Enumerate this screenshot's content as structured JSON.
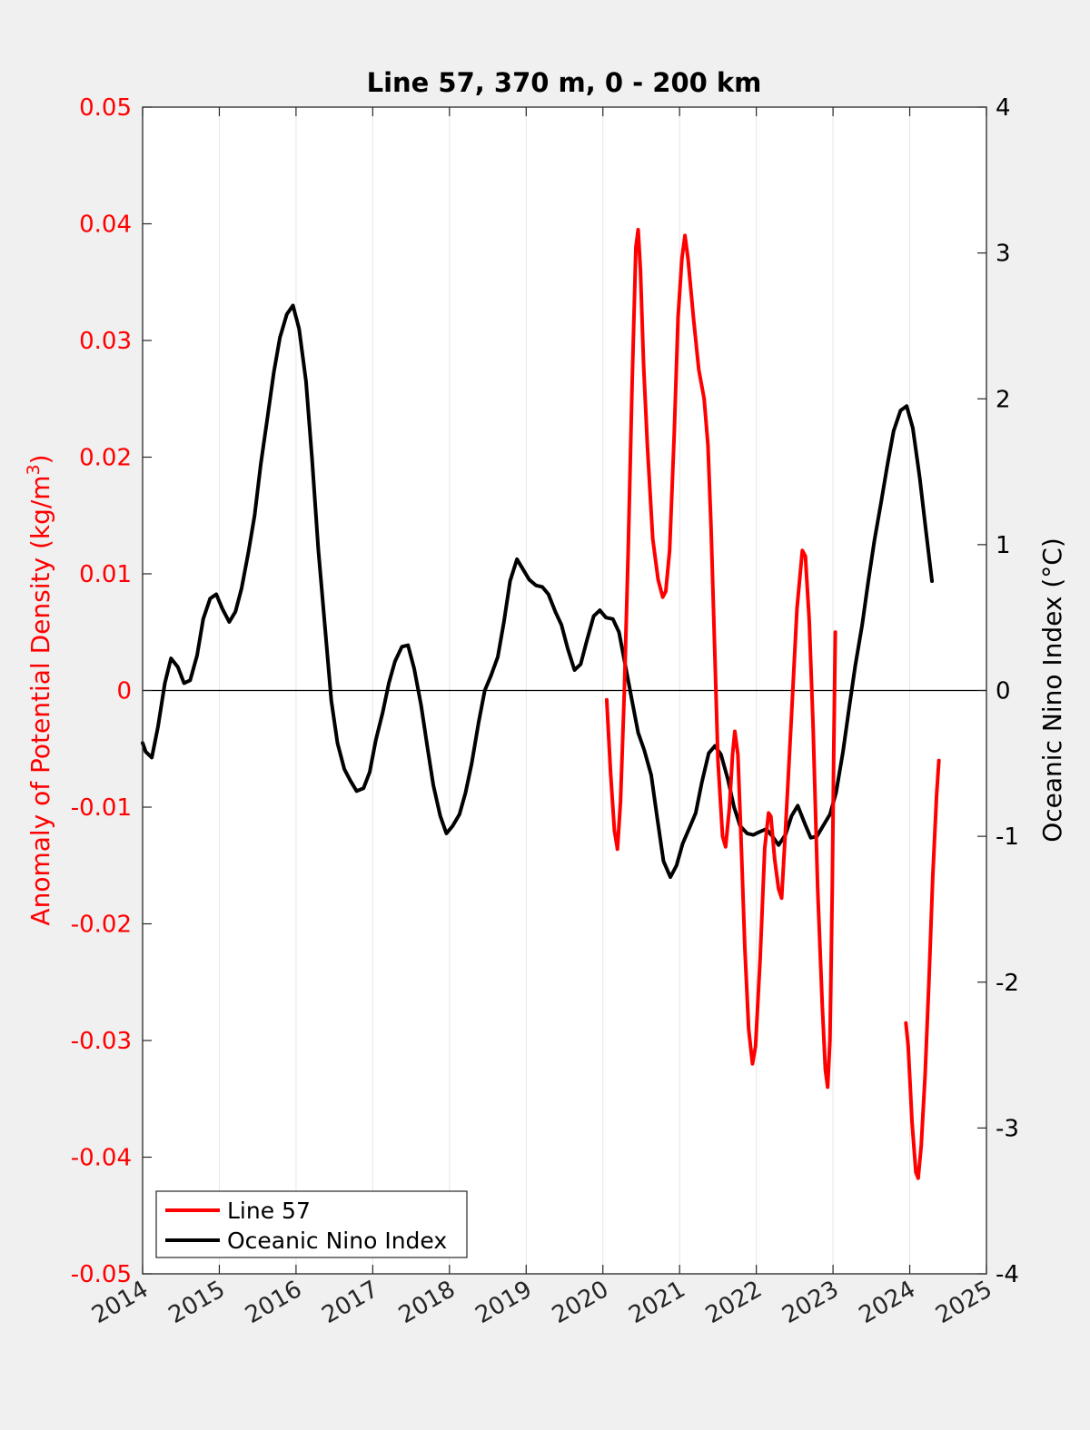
{
  "chart_data": {
    "type": "line",
    "title": "Line 57, 370 m, 0 - 200 km",
    "xlabel": "",
    "xlim": [
      2014,
      2025
    ],
    "xticks": [
      "2014",
      "2015",
      "2016",
      "2017",
      "2018",
      "2019",
      "2020",
      "2021",
      "2022",
      "2023",
      "2024",
      "2025"
    ],
    "ylabel_left": "Anomaly of Potential Density (kg/m³)",
    "ylabel_left_base": "Anomaly of Potential Density (kg/m",
    "ylabel_left_sup": "3",
    "ylabel_left_end": ")",
    "ylim_left": [
      -0.05,
      0.05
    ],
    "yticks_left": [
      "-0.05",
      "-0.04",
      "-0.03",
      "-0.02",
      "-0.01",
      "0",
      "0.01",
      "0.02",
      "0.03",
      "0.04",
      "0.05"
    ],
    "ylabel_right": "Oceanic Nino Index (°C)",
    "ylim_right": [
      -4,
      4
    ],
    "yticks_right": [
      "-4",
      "-3",
      "-2",
      "-1",
      "0",
      "1",
      "2",
      "3",
      "4"
    ],
    "grid": "vertical",
    "zero_line": true,
    "legend_position": "bottom-left",
    "colors": {
      "line57": "#ff0000",
      "oni": "#000000",
      "left_axis": "#ff0000",
      "right_axis": "#000000"
    },
    "series": [
      {
        "name": "Line 57",
        "axis": "left",
        "segments": [
          [
            [
              2020.05,
              -0.0008
            ],
            [
              2020.1,
              -0.007
            ],
            [
              2020.15,
              -0.012
            ],
            [
              2020.19,
              -0.0136
            ],
            [
              2020.23,
              -0.0095
            ],
            [
              2020.28,
              0.0
            ],
            [
              2020.33,
              0.012
            ],
            [
              2020.38,
              0.026
            ],
            [
              2020.43,
              0.038
            ],
            [
              2020.46,
              0.0395
            ],
            [
              2020.49,
              0.036
            ],
            [
              2020.53,
              0.028
            ],
            [
              2020.58,
              0.021
            ],
            [
              2020.65,
              0.013
            ],
            [
              2020.72,
              0.0095
            ],
            [
              2020.78,
              0.008
            ],
            [
              2020.82,
              0.0085
            ],
            [
              2020.87,
              0.012
            ],
            [
              2020.93,
              0.022
            ],
            [
              2020.98,
              0.032
            ],
            [
              2021.03,
              0.037
            ],
            [
              2021.07,
              0.039
            ],
            [
              2021.11,
              0.037
            ],
            [
              2021.18,
              0.032
            ],
            [
              2021.25,
              0.0275
            ],
            [
              2021.32,
              0.025
            ],
            [
              2021.37,
              0.021
            ],
            [
              2021.41,
              0.014
            ],
            [
              2021.46,
              0.003
            ],
            [
              2021.5,
              -0.006
            ],
            [
              2021.56,
              -0.0125
            ],
            [
              2021.6,
              -0.0134
            ],
            [
              2021.65,
              -0.01
            ],
            [
              2021.69,
              -0.0055
            ],
            [
              2021.72,
              -0.0035
            ],
            [
              2021.76,
              -0.0055
            ],
            [
              2021.8,
              -0.0125
            ],
            [
              2021.85,
              -0.022
            ],
            [
              2021.9,
              -0.029
            ],
            [
              2021.95,
              -0.032
            ],
            [
              2021.99,
              -0.0305
            ],
            [
              2022.05,
              -0.023
            ],
            [
              2022.11,
              -0.0135
            ],
            [
              2022.16,
              -0.0105
            ],
            [
              2022.19,
              -0.0108
            ],
            [
              2022.24,
              -0.0145
            ],
            [
              2022.29,
              -0.017
            ],
            [
              2022.33,
              -0.0178
            ],
            [
              2022.38,
              -0.012
            ],
            [
              2022.46,
              -0.002
            ],
            [
              2022.53,
              0.007
            ],
            [
              2022.6,
              0.012
            ],
            [
              2022.64,
              0.0115
            ],
            [
              2022.69,
              0.006
            ],
            [
              2022.74,
              -0.003
            ],
            [
              2022.8,
              -0.017
            ],
            [
              2022.86,
              -0.027
            ],
            [
              2022.9,
              -0.0325
            ],
            [
              2022.93,
              -0.034
            ],
            [
              2022.96,
              -0.03
            ],
            [
              2022.99,
              -0.017
            ],
            [
              2023.01,
              -0.005
            ],
            [
              2023.03,
              0.005
            ]
          ],
          [
            [
              2023.95,
              -0.0285
            ],
            [
              2023.98,
              -0.0305
            ],
            [
              2024.03,
              -0.037
            ],
            [
              2024.08,
              -0.0413
            ],
            [
              2024.11,
              -0.0418
            ],
            [
              2024.15,
              -0.039
            ],
            [
              2024.2,
              -0.033
            ],
            [
              2024.25,
              -0.025
            ],
            [
              2024.3,
              -0.016
            ],
            [
              2024.35,
              -0.009
            ],
            [
              2024.38,
              -0.006
            ]
          ]
        ]
      },
      {
        "name": "Oceanic Nino Index",
        "axis": "right",
        "segments": [
          [
            [
              2014.0,
              -0.36
            ],
            [
              2014.04,
              -0.42
            ],
            [
              2014.12,
              -0.46
            ],
            [
              2014.2,
              -0.25
            ],
            [
              2014.29,
              0.05
            ],
            [
              2014.37,
              0.22
            ],
            [
              2014.46,
              0.16
            ],
            [
              2014.54,
              0.05
            ],
            [
              2014.62,
              0.07
            ],
            [
              2014.71,
              0.24
            ],
            [
              2014.79,
              0.49
            ],
            [
              2014.88,
              0.63
            ],
            [
              2014.96,
              0.66
            ],
            [
              2015.04,
              0.56
            ],
            [
              2015.13,
              0.47
            ],
            [
              2015.21,
              0.54
            ],
            [
              2015.29,
              0.7
            ],
            [
              2015.38,
              0.95
            ],
            [
              2015.46,
              1.2
            ],
            [
              2015.54,
              1.55
            ],
            [
              2015.63,
              1.88
            ],
            [
              2015.71,
              2.18
            ],
            [
              2015.79,
              2.42
            ],
            [
              2015.88,
              2.58
            ],
            [
              2015.96,
              2.64
            ],
            [
              2016.04,
              2.48
            ],
            [
              2016.13,
              2.12
            ],
            [
              2016.21,
              1.58
            ],
            [
              2016.29,
              0.97
            ],
            [
              2016.38,
              0.42
            ],
            [
              2016.46,
              -0.07
            ],
            [
              2016.54,
              -0.36
            ],
            [
              2016.63,
              -0.54
            ],
            [
              2016.71,
              -0.62
            ],
            [
              2016.79,
              -0.69
            ],
            [
              2016.88,
              -0.67
            ],
            [
              2016.96,
              -0.56
            ],
            [
              2017.04,
              -0.34
            ],
            [
              2017.13,
              -0.15
            ],
            [
              2017.21,
              0.05
            ],
            [
              2017.29,
              0.2
            ],
            [
              2017.38,
              0.3
            ],
            [
              2017.46,
              0.31
            ],
            [
              2017.54,
              0.15
            ],
            [
              2017.63,
              -0.1
            ],
            [
              2017.71,
              -0.38
            ],
            [
              2017.79,
              -0.65
            ],
            [
              2017.88,
              -0.86
            ],
            [
              2017.96,
              -0.98
            ],
            [
              2018.04,
              -0.93
            ],
            [
              2018.13,
              -0.85
            ],
            [
              2018.21,
              -0.7
            ],
            [
              2018.29,
              -0.5
            ],
            [
              2018.38,
              -0.22
            ],
            [
              2018.46,
              0.0
            ],
            [
              2018.54,
              0.1
            ],
            [
              2018.63,
              0.23
            ],
            [
              2018.71,
              0.47
            ],
            [
              2018.79,
              0.75
            ],
            [
              2018.88,
              0.9
            ],
            [
              2018.96,
              0.83
            ],
            [
              2019.04,
              0.76
            ],
            [
              2019.13,
              0.72
            ],
            [
              2019.21,
              0.71
            ],
            [
              2019.29,
              0.66
            ],
            [
              2019.38,
              0.54
            ],
            [
              2019.46,
              0.45
            ],
            [
              2019.54,
              0.29
            ],
            [
              2019.63,
              0.14
            ],
            [
              2019.71,
              0.18
            ],
            [
              2019.79,
              0.34
            ],
            [
              2019.88,
              0.51
            ],
            [
              2019.96,
              0.55
            ],
            [
              2020.04,
              0.5
            ],
            [
              2020.13,
              0.49
            ],
            [
              2020.21,
              0.4
            ],
            [
              2020.29,
              0.18
            ],
            [
              2020.38,
              -0.07
            ],
            [
              2020.46,
              -0.29
            ],
            [
              2020.54,
              -0.41
            ],
            [
              2020.63,
              -0.58
            ],
            [
              2020.71,
              -0.88
            ],
            [
              2020.79,
              -1.17
            ],
            [
              2020.88,
              -1.28
            ],
            [
              2020.96,
              -1.2
            ],
            [
              2021.04,
              -1.05
            ],
            [
              2021.13,
              -0.94
            ],
            [
              2021.21,
              -0.84
            ],
            [
              2021.29,
              -0.63
            ],
            [
              2021.38,
              -0.43
            ],
            [
              2021.46,
              -0.38
            ],
            [
              2021.54,
              -0.44
            ],
            [
              2021.63,
              -0.61
            ],
            [
              2021.71,
              -0.8
            ],
            [
              2021.79,
              -0.93
            ],
            [
              2021.88,
              -0.98
            ],
            [
              2021.96,
              -0.99
            ],
            [
              2022.04,
              -0.97
            ],
            [
              2022.13,
              -0.95
            ],
            [
              2022.21,
              -1.0
            ],
            [
              2022.29,
              -1.06
            ],
            [
              2022.38,
              -0.99
            ],
            [
              2022.46,
              -0.86
            ],
            [
              2022.54,
              -0.79
            ],
            [
              2022.63,
              -0.91
            ],
            [
              2022.71,
              -1.01
            ],
            [
              2022.79,
              -1.0
            ],
            [
              2022.88,
              -0.92
            ],
            [
              2022.96,
              -0.85
            ],
            [
              2023.04,
              -0.7
            ],
            [
              2023.13,
              -0.42
            ],
            [
              2023.21,
              -0.12
            ],
            [
              2023.29,
              0.17
            ],
            [
              2023.38,
              0.45
            ],
            [
              2023.46,
              0.75
            ],
            [
              2023.54,
              1.03
            ],
            [
              2023.63,
              1.3
            ],
            [
              2023.71,
              1.55
            ],
            [
              2023.79,
              1.78
            ],
            [
              2023.88,
              1.92
            ],
            [
              2023.96,
              1.95
            ],
            [
              2024.04,
              1.8
            ],
            [
              2024.13,
              1.46
            ],
            [
              2024.21,
              1.1
            ],
            [
              2024.29,
              0.75
            ]
          ]
        ]
      }
    ]
  }
}
